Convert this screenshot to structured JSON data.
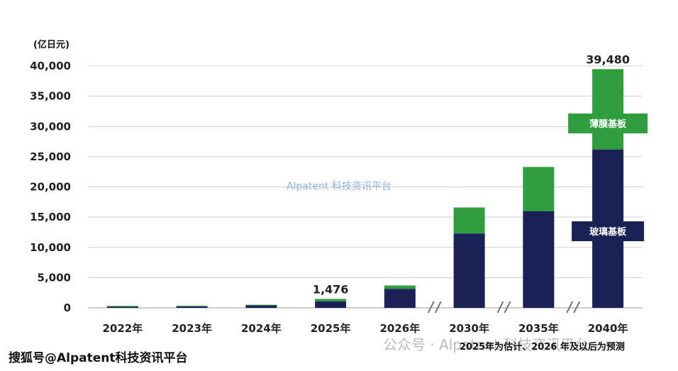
{
  "chart_data": {
    "type": "bar",
    "stacked": true,
    "unit_label": "(亿日元)",
    "categories": [
      "2022年",
      "2023年",
      "2024年",
      "2025年",
      "2026年",
      "2030年",
      "2035年",
      "2040年"
    ],
    "series": [
      {
        "name": "玻璃基板",
        "color": "#1b2157",
        "values": [
          250,
          280,
          420,
          1090,
          3150,
          12300,
          16000,
          26200
        ]
      },
      {
        "name": "薄膜基板",
        "color": "#2e9e3e",
        "values": [
          60,
          60,
          90,
          386,
          550,
          4300,
          7300,
          13280
        ]
      }
    ],
    "data_labels": [
      {
        "category": "2025年",
        "text": "1,476"
      },
      {
        "category": "2040年",
        "text": "39,480"
      }
    ],
    "y_ticks": [
      "0",
      "5,000",
      "10,000",
      "15,000",
      "20,000",
      "25,000",
      "30,000",
      "35,000",
      "40,000"
    ],
    "ylim": [
      0,
      40000
    ],
    "grid": true,
    "axis_breaks_before": [
      "2030年",
      "2035年",
      "2040年"
    ],
    "axis_break_symbol": "//",
    "footnote": "2025年为估计、2026 年及以后为预测",
    "watermark": "Alpatent 科技资讯平台",
    "watermark_bottom": "公众号 · Alpatent 科技资讯平台",
    "source_mark": "搜狐号@Alpatent科技资讯平台"
  }
}
